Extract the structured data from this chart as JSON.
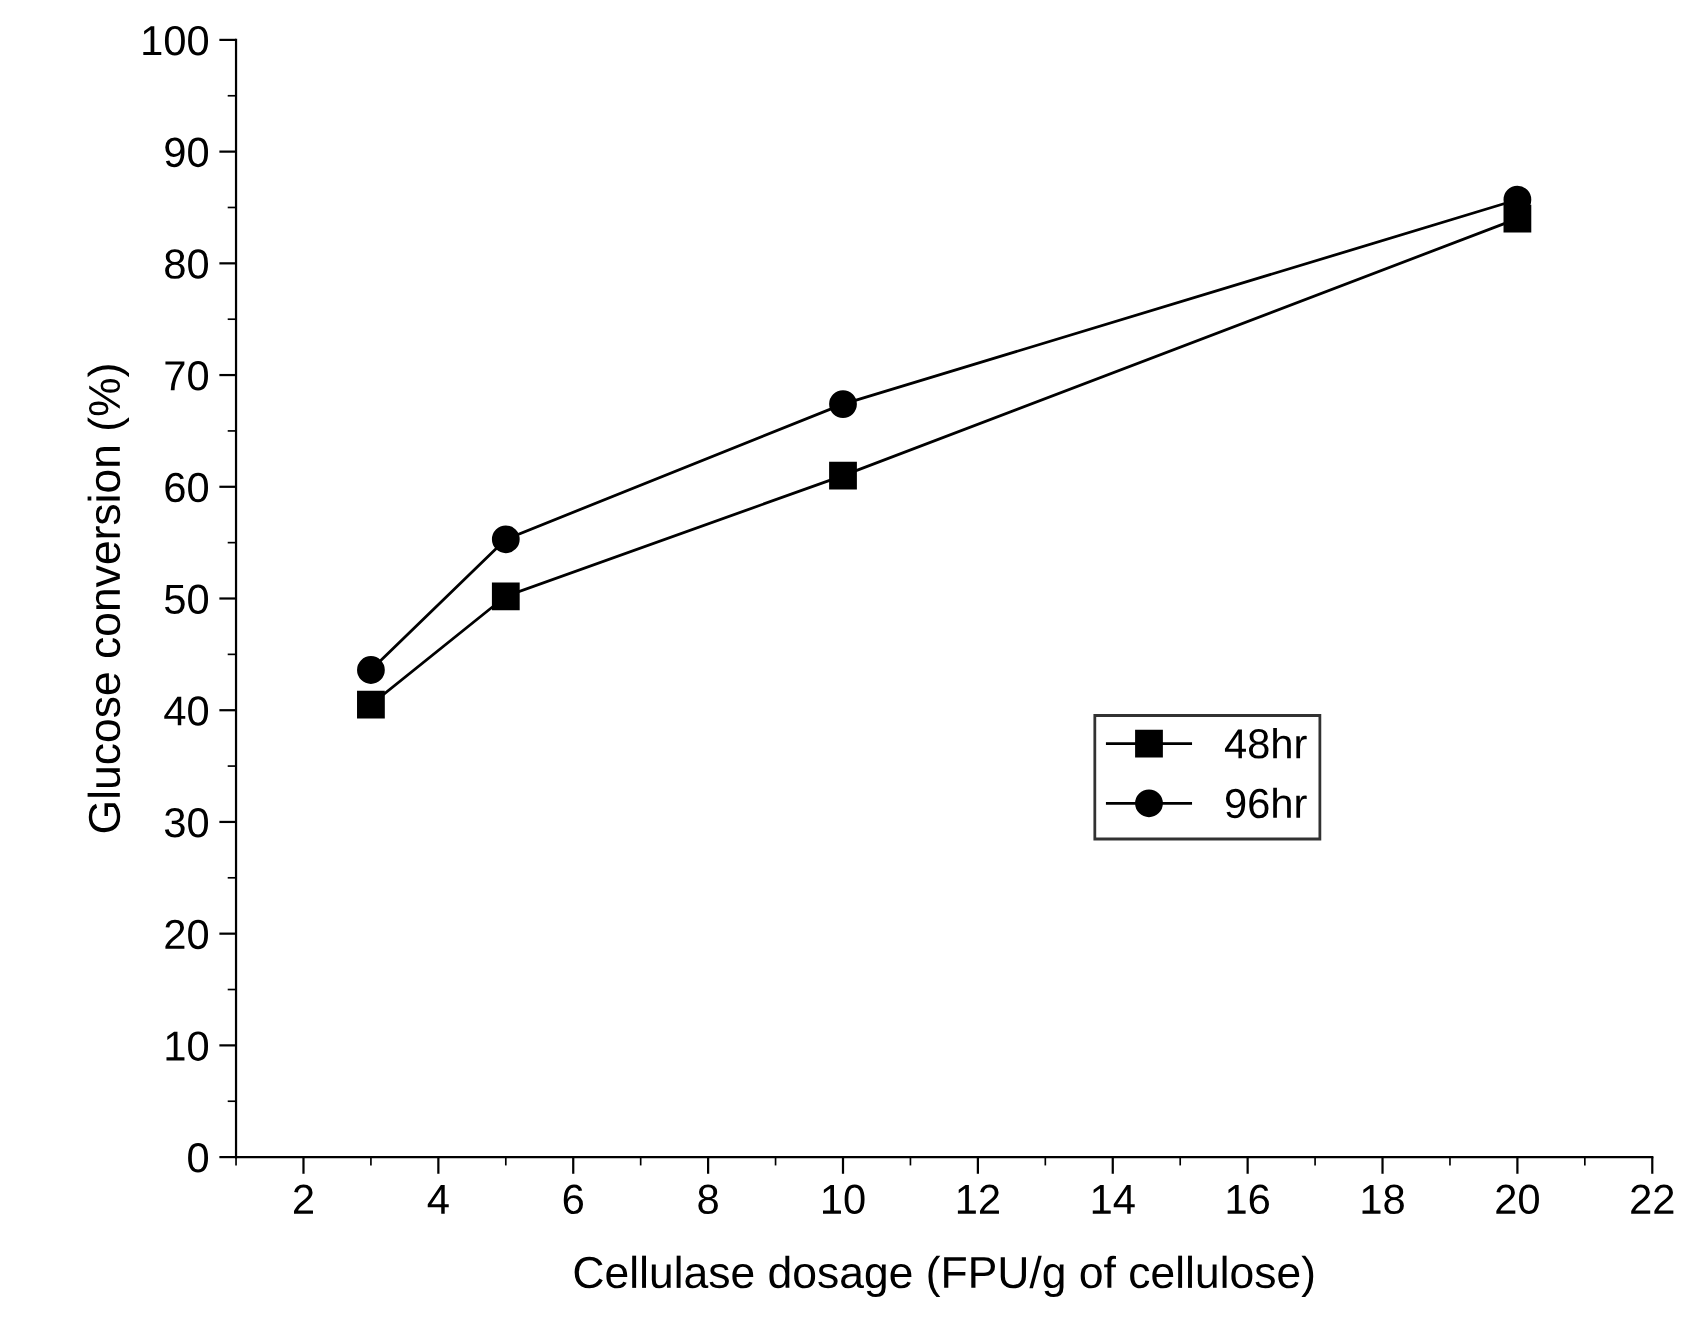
{
  "chart_data": {
    "type": "line",
    "xlabel": "Cellulase dosage (FPU/g of cellulose)",
    "ylabel": "Glucose conversion (%)",
    "x": [
      3,
      5,
      10,
      20
    ],
    "series": [
      {
        "name": "48hr",
        "color": "#000000",
        "marker": "square",
        "values": [
          40.5,
          50.2,
          61.0,
          84.0
        ]
      },
      {
        "name": "96hr",
        "color": "#000000",
        "marker": "circle",
        "values": [
          43.6,
          55.3,
          67.4,
          85.7
        ]
      }
    ],
    "xlim": [
      1,
      22
    ],
    "xticks": [
      2,
      4,
      6,
      8,
      10,
      12,
      14,
      16,
      18,
      20,
      22
    ],
    "ylim": [
      0,
      100
    ],
    "yticks": [
      0,
      10,
      20,
      30,
      40,
      50,
      60,
      70,
      80,
      90,
      100
    ],
    "grid": false,
    "legend": "right",
    "line_style": "solid"
  }
}
